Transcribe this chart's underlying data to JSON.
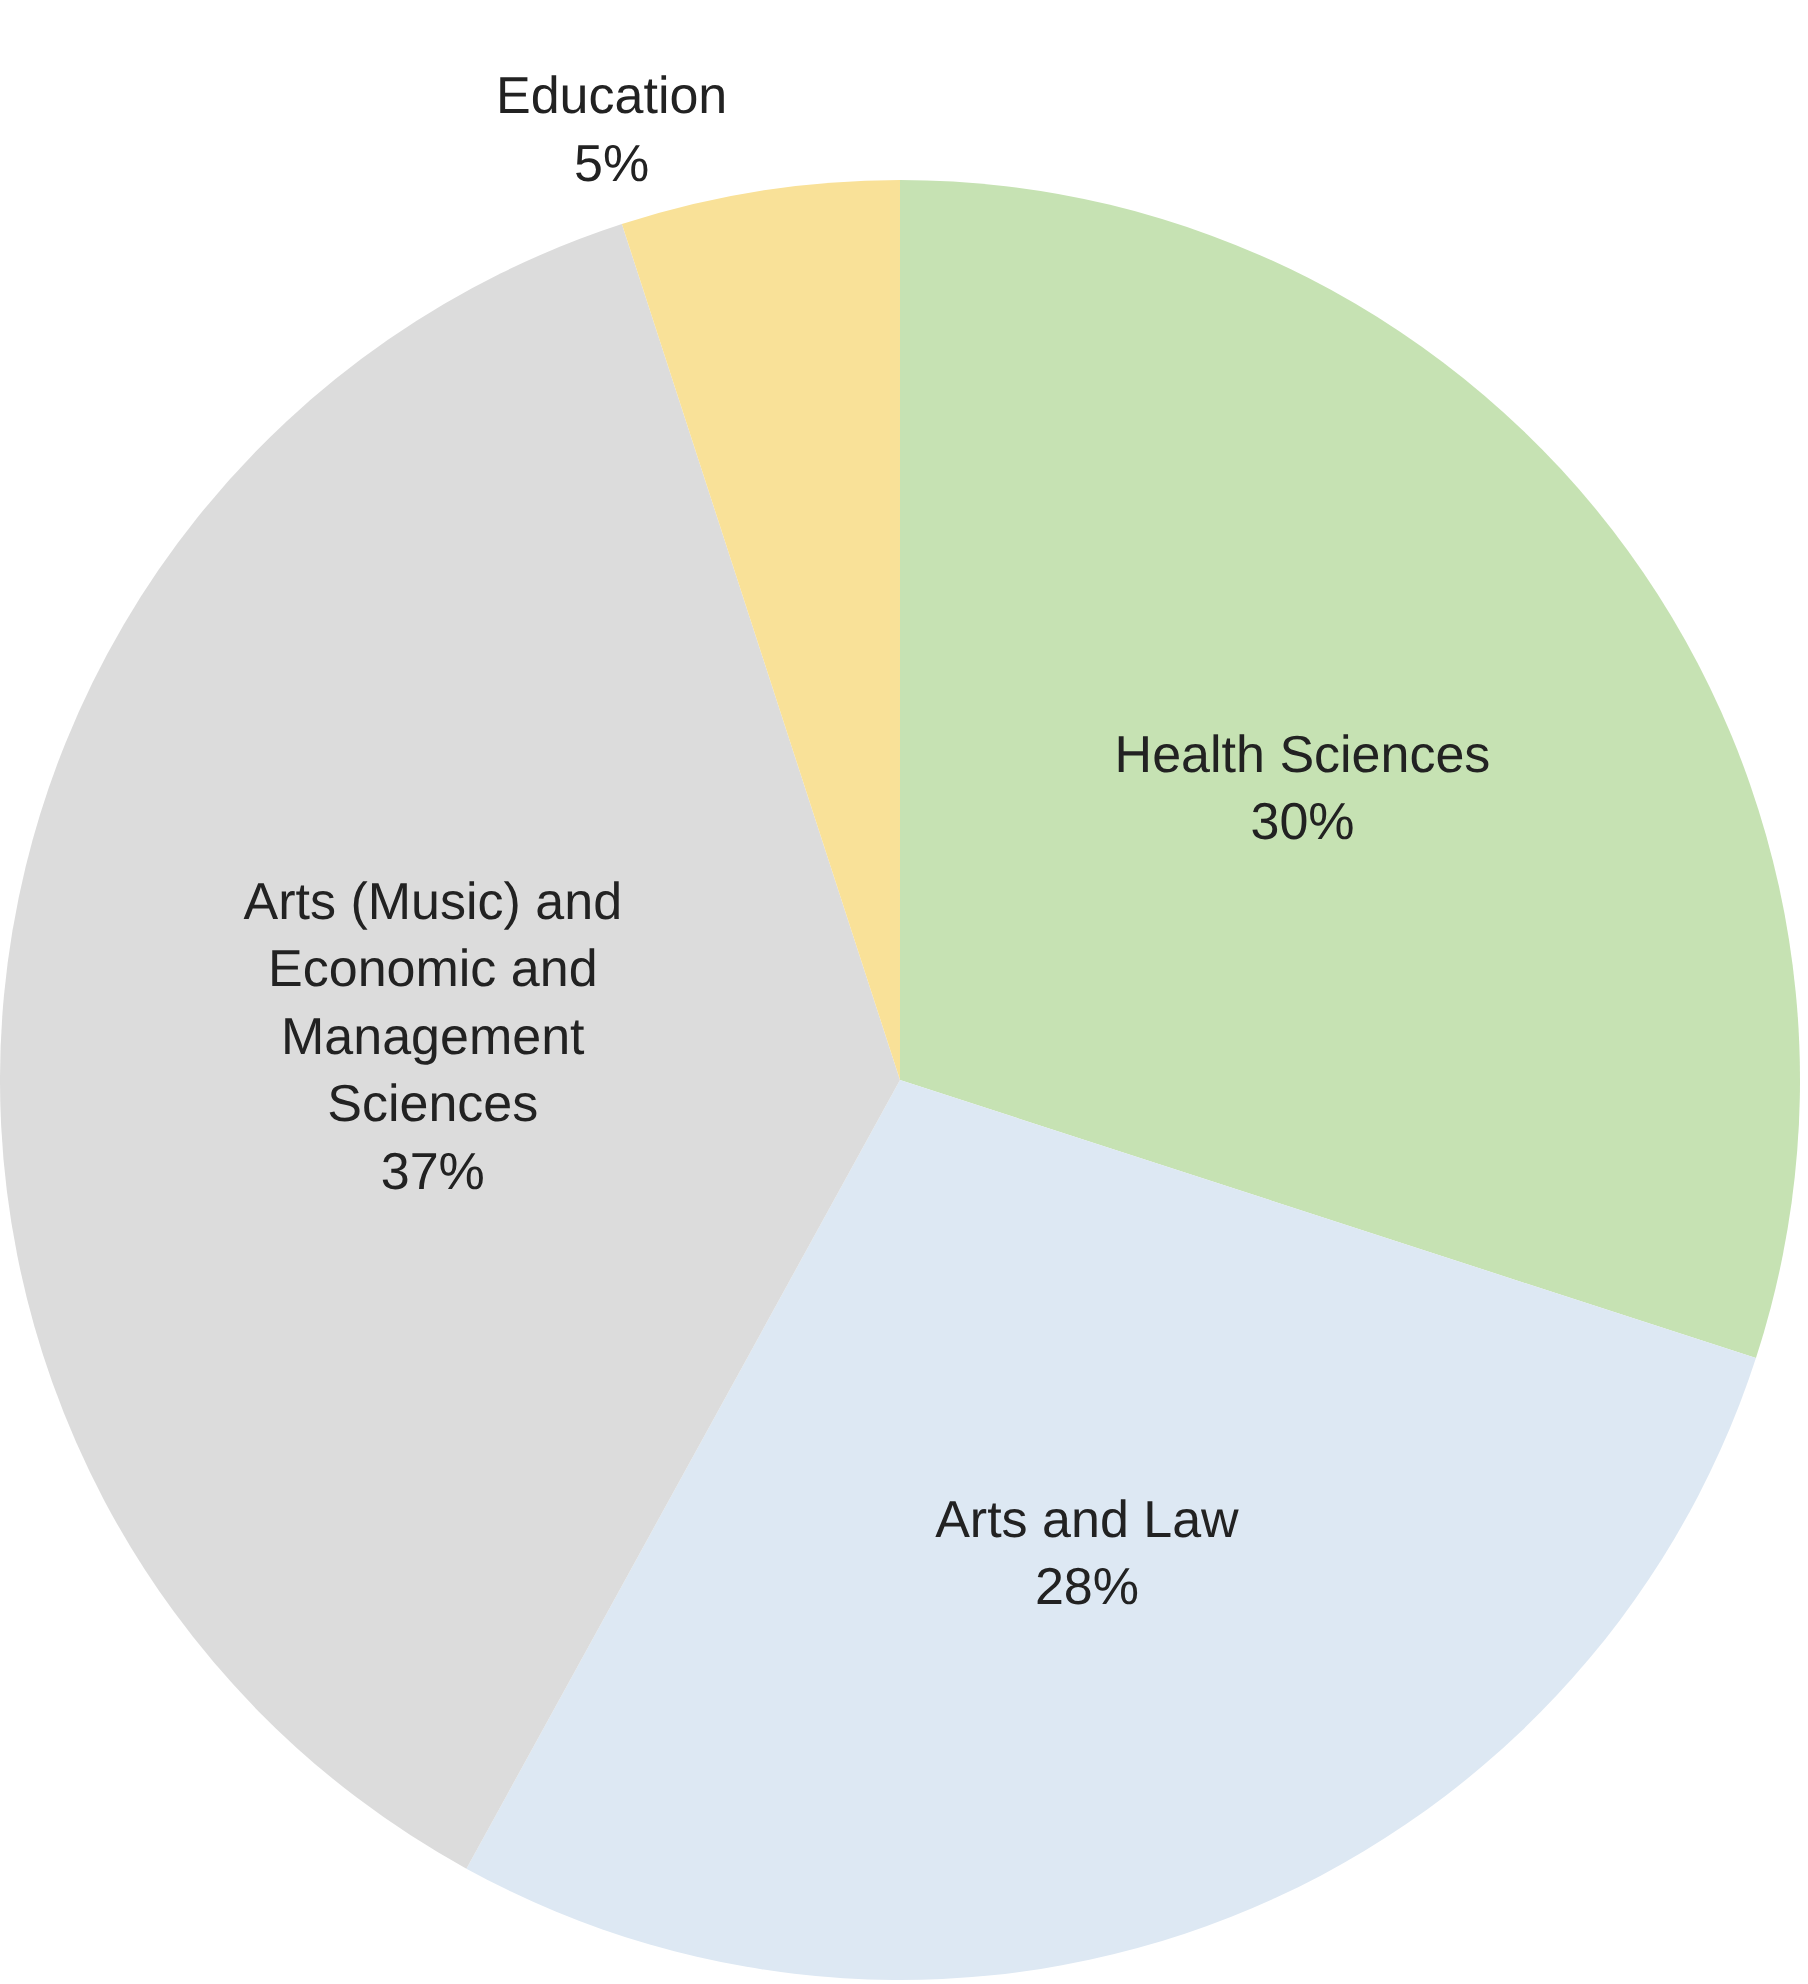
{
  "chart_data": {
    "type": "pie",
    "categories": [
      "Health Sciences",
      "Arts and Law",
      "Arts (Music) and Economic and Management Sciences",
      "Education"
    ],
    "values": [
      30,
      28,
      37,
      5
    ],
    "value_labels": [
      "30%",
      "28%",
      "37%",
      "5%"
    ],
    "colors": [
      "#c6e2b3",
      "#dde8f3",
      "#dcdcdc",
      "#f9e198"
    ],
    "legend": false
  }
}
